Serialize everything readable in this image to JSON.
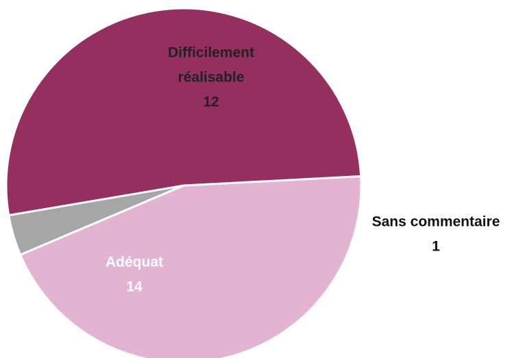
{
  "chart_data": {
    "type": "pie",
    "slices": [
      {
        "label_lines": [
          "Difficilement",
          "réalisable"
        ],
        "value": 12,
        "value_label": "12",
        "color": "#e2b4d2",
        "label_color": "#222222"
      },
      {
        "label_lines": [
          "Sans commentaire"
        ],
        "value": 1,
        "value_label": "1",
        "color": "#a6a6a6",
        "label_color": "#111111"
      },
      {
        "label_lines": [
          "Adéquat"
        ],
        "value": 14,
        "value_label": "14",
        "color": "#952f60",
        "label_color": "#ffffff"
      }
    ],
    "border_color": "#ffffff"
  }
}
